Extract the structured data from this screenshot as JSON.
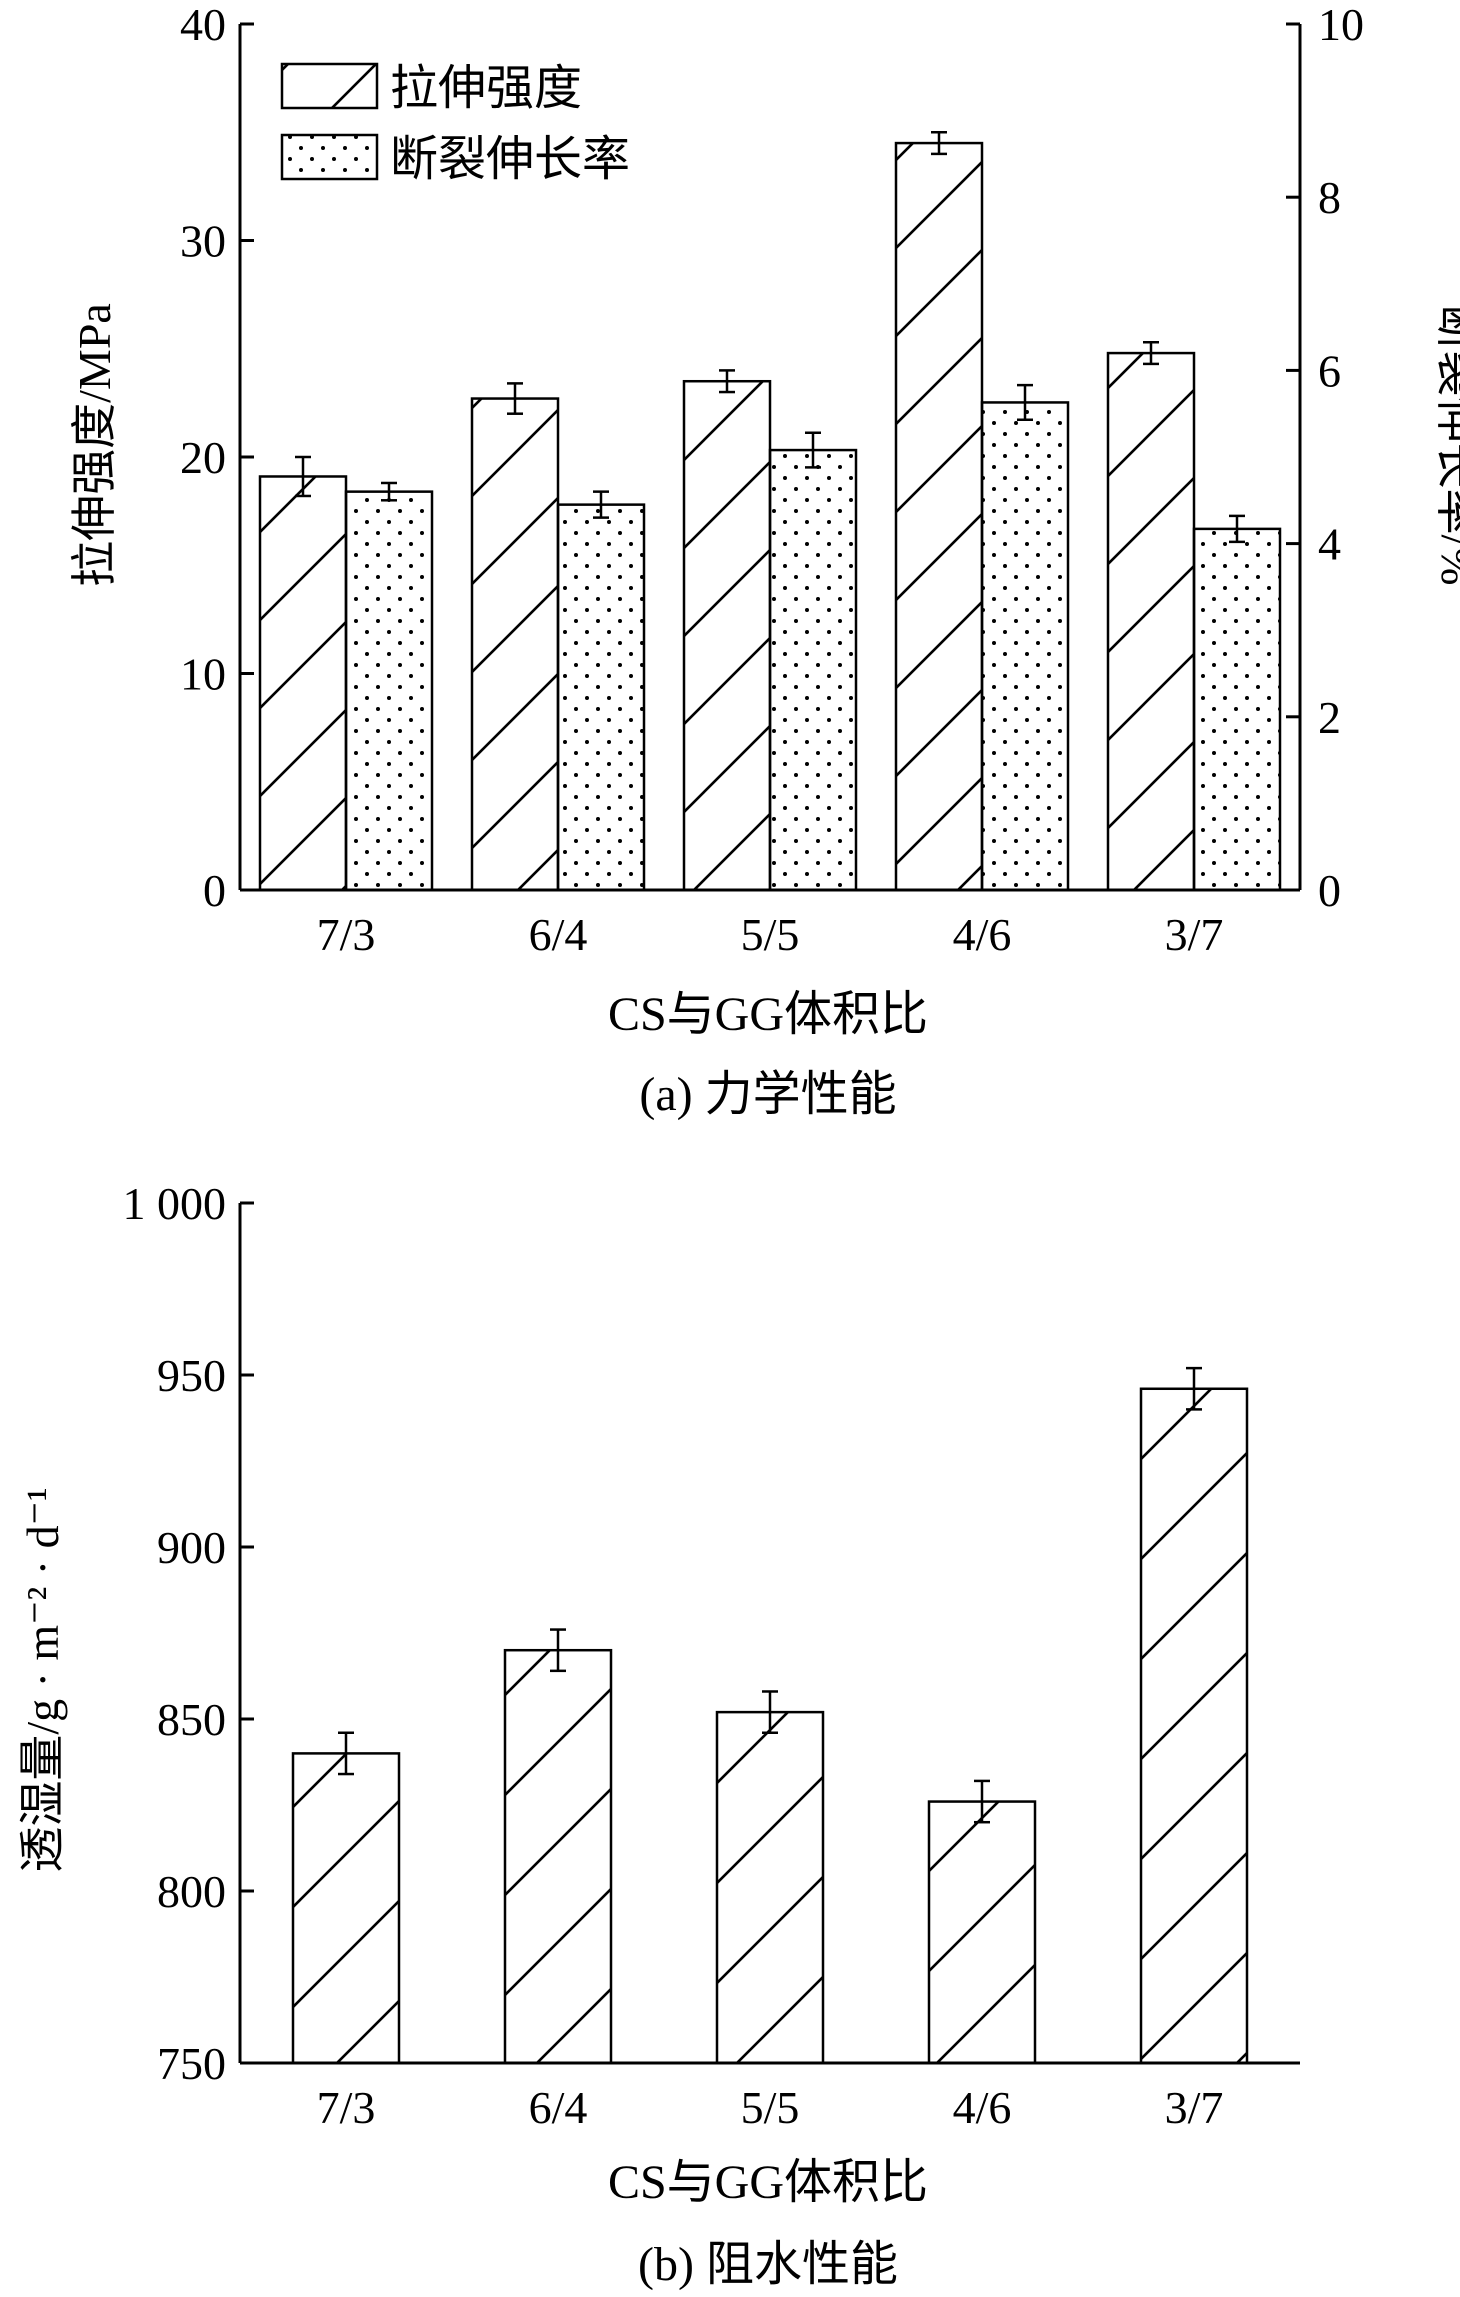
{
  "chart_data": [
    {
      "type": "bar",
      "panel_caption": "(a) 力学性能",
      "xlabel": "CS与GG体积比",
      "ylabel": "拉伸强度/MPa",
      "y2label": "断裂伸长率/%",
      "categories": [
        "7/3",
        "6/4",
        "5/5",
        "4/6",
        "3/7"
      ],
      "ylim": [
        0,
        40
      ],
      "y2lim": [
        0,
        10
      ],
      "yticks": [
        0,
        10,
        20,
        30,
        40
      ],
      "y2ticks": [
        0,
        2,
        4,
        6,
        8,
        10
      ],
      "legend_position": "top-left",
      "grid": false,
      "series": [
        {
          "name": "拉伸强度",
          "axis": "left",
          "pattern": "hatch",
          "values": [
            19.1,
            22.7,
            23.5,
            34.5,
            24.8
          ],
          "errors": [
            0.9,
            0.7,
            0.5,
            0.5,
            0.5
          ]
        },
        {
          "name": "断裂伸长率",
          "axis": "right",
          "pattern": "dots",
          "values": [
            4.6,
            4.45,
            5.08,
            5.63,
            4.17
          ],
          "errors": [
            0.1,
            0.15,
            0.2,
            0.2,
            0.15
          ]
        }
      ]
    },
    {
      "type": "bar",
      "panel_caption": "(b) 阻水性能",
      "xlabel": "CS与GG体积比",
      "ylabel": "透湿量/g · m⁻² · d⁻¹",
      "categories": [
        "7/3",
        "6/4",
        "5/5",
        "4/6",
        "3/7"
      ],
      "ylim": [
        750,
        1000
      ],
      "yticks": [
        750,
        800,
        850,
        900,
        950,
        1000
      ],
      "ytick_labels": [
        "750",
        "800",
        "850",
        "900",
        "950",
        "1 000"
      ],
      "grid": false,
      "series": [
        {
          "pattern": "hatch",
          "values": [
            840,
            870,
            852,
            826,
            946
          ],
          "errors": [
            6,
            6,
            6,
            6,
            6
          ]
        }
      ]
    }
  ]
}
